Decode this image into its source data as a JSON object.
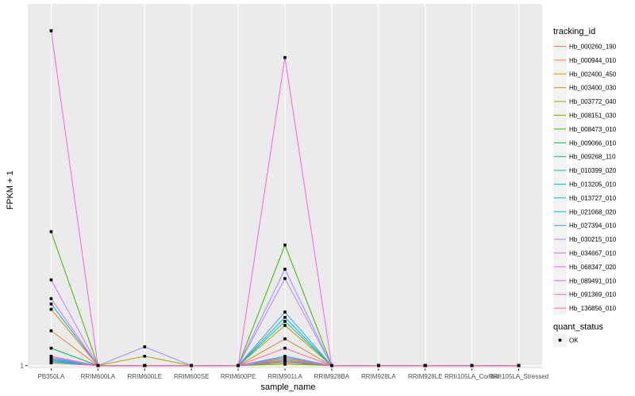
{
  "chart_data": {
    "type": "line",
    "xlabel": "sample_name",
    "ylabel": "FPKM + 1",
    "y_tick_labels": [
      "1"
    ],
    "y_tick_values": [
      1
    ],
    "ylim": [
      0.8,
      28
    ],
    "categories": [
      "PB350LA",
      "RRIM600LA",
      "RRIM600LE",
      "RRIM600SE",
      "RRIM600PE",
      "RRIM901LA",
      "RRIM928BA",
      "RRIM928LA",
      "RRIM928LE",
      "RRII105LA_Control",
      "RRII105LA_Stressed"
    ],
    "legend_title": "tracking_id",
    "series": [
      {
        "name": "Hb_000260_190",
        "color": "#F8766D",
        "values": [
          1.5,
          1,
          1,
          1,
          1,
          1.2,
          1,
          1,
          1,
          1,
          1
        ]
      },
      {
        "name": "Hb_000944_010",
        "color": "#EA8331",
        "values": [
          3.6,
          1,
          1,
          1,
          1,
          3.0,
          1,
          1,
          1,
          1,
          1
        ]
      },
      {
        "name": "Hb_002400_450",
        "color": "#D89000",
        "values": [
          5.2,
          1,
          1,
          1,
          1,
          4.0,
          1,
          1,
          1,
          1,
          1
        ]
      },
      {
        "name": "Hb_003400_030",
        "color": "#C09B00",
        "values": [
          1.6,
          1,
          1,
          1,
          1,
          1.3,
          1,
          1,
          1,
          1,
          1
        ]
      },
      {
        "name": "Hb_003772_040",
        "color": "#A3A500",
        "values": [
          1.3,
          1,
          1.7,
          1,
          1,
          1.5,
          1,
          1,
          1,
          1,
          1
        ]
      },
      {
        "name": "Hb_008151_030",
        "color": "#7CAE00",
        "values": [
          1.2,
          1,
          1,
          1,
          1,
          1.1,
          1,
          1,
          1,
          1,
          1
        ]
      },
      {
        "name": "Hb_008473_010",
        "color": "#39B600",
        "values": [
          11.0,
          1,
          1,
          1,
          1,
          10.0,
          1,
          1,
          1,
          1,
          1
        ]
      },
      {
        "name": "Hb_009066_010",
        "color": "#00BB4E",
        "values": [
          2.3,
          1,
          1,
          1,
          1,
          1.4,
          1,
          1,
          1,
          1,
          1
        ]
      },
      {
        "name": "Hb_009268_110",
        "color": "#00BF7D",
        "values": [
          1.4,
          1,
          1,
          1,
          1,
          1.3,
          1,
          1,
          1,
          1,
          1
        ]
      },
      {
        "name": "Hb_010399_020",
        "color": "#00C1A3",
        "values": [
          1.3,
          1,
          1,
          1,
          1,
          4.3,
          1,
          1,
          1,
          1,
          1
        ]
      },
      {
        "name": "Hb_013205_010",
        "color": "#00BFC4",
        "values": [
          1.5,
          1,
          1,
          1,
          1,
          4.6,
          1,
          1,
          1,
          1,
          1
        ]
      },
      {
        "name": "Hb_013727_010",
        "color": "#00BAE0",
        "values": [
          1.4,
          1,
          1,
          1,
          1,
          1.6,
          1,
          1,
          1,
          1,
          1
        ]
      },
      {
        "name": "Hb_021068_020",
        "color": "#00B0F6",
        "values": [
          5.6,
          1,
          1,
          1,
          1,
          1.7,
          1,
          1,
          1,
          1,
          1
        ]
      },
      {
        "name": "Hb_027394_010",
        "color": "#35A2FF",
        "values": [
          1.5,
          1,
          1,
          1,
          1,
          5.0,
          1,
          1,
          1,
          1,
          1
        ]
      },
      {
        "name": "Hb_030215_010",
        "color": "#9590FF",
        "values": [
          1.6,
          1,
          2.4,
          1,
          1,
          8.2,
          1,
          1,
          1,
          1,
          1
        ]
      },
      {
        "name": "Hb_034667_010",
        "color": "#C77CFF",
        "values": [
          7.4,
          1,
          1,
          1,
          1,
          7.5,
          1,
          1,
          1,
          1,
          1
        ]
      },
      {
        "name": "Hb_068347_020",
        "color": "#E76BF3",
        "values": [
          6.0,
          1,
          1,
          1,
          1,
          1.6,
          1,
          1,
          1,
          1,
          1
        ]
      },
      {
        "name": "Hb_089491_010",
        "color": "#FA62DB",
        "values": [
          26.0,
          1,
          1,
          1,
          1,
          24.0,
          1,
          1,
          1,
          1,
          1
        ]
      },
      {
        "name": "Hb_091369_010",
        "color": "#FF62BC",
        "values": [
          1.7,
          1,
          1,
          1,
          1,
          1.4,
          1,
          1,
          1,
          1,
          1
        ]
      },
      {
        "name": "Hb_136856_010",
        "color": "#FF6C91",
        "values": [
          1.2,
          1,
          1,
          1,
          1,
          2.3,
          1,
          1,
          1,
          1,
          1
        ]
      }
    ],
    "legend2_title": "quant_status",
    "legend2_items": [
      {
        "label": "OK"
      }
    ],
    "panel_background": "#EBEBEB",
    "grid": true,
    "legend_position": "right"
  }
}
